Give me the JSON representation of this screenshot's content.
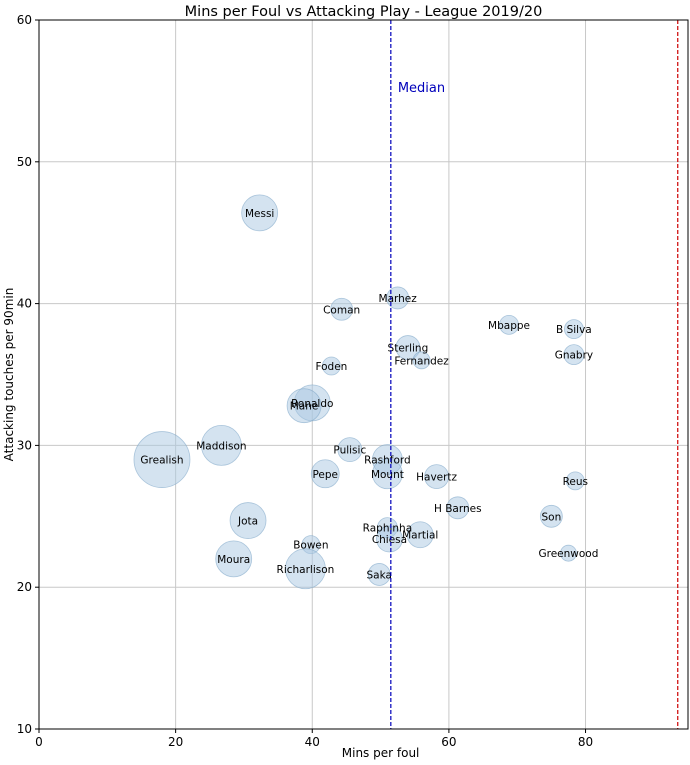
{
  "chart_data": {
    "type": "scatter",
    "title": "Mins per Foul vs Attacking Play - League 2019/20",
    "xlabel": "Mins per foul",
    "ylabel": "Attacking touches per 90min",
    "xlim": [
      0,
      95
    ],
    "ylim": [
      10,
      60
    ],
    "xticks": [
      0,
      20,
      40,
      60,
      80
    ],
    "yticks": [
      10,
      20,
      30,
      40,
      50,
      60
    ],
    "grid": true,
    "bubble_color": "#a9c8e2",
    "bubble_edge": "#7ea6c8",
    "median": {
      "x": 51.5,
      "label": "Median",
      "color": "#0000bb"
    },
    "threshold_line": {
      "x": 93.5,
      "color": "#cc0000"
    },
    "points": [
      {
        "name": "Messi",
        "x": 32.3,
        "y": 46.4,
        "s": 18
      },
      {
        "name": "Marhez",
        "x": 52.5,
        "y": 40.4,
        "s": 11
      },
      {
        "name": "Coman",
        "x": 44.3,
        "y": 39.6,
        "s": 11
      },
      {
        "name": "Mbappe",
        "x": 68.8,
        "y": 38.5,
        "s": 9.5
      },
      {
        "name": "B Silva",
        "x": 78.3,
        "y": 38.2,
        "s": 9.5
      },
      {
        "name": "Sterling",
        "x": 54.0,
        "y": 36.9,
        "s": 12
      },
      {
        "name": "Gnabry",
        "x": 78.3,
        "y": 36.4,
        "s": 10
      },
      {
        "name": "Fernandez",
        "x": 56.0,
        "y": 36.0,
        "s": 8.5
      },
      {
        "name": "Foden",
        "x": 42.8,
        "y": 35.6,
        "s": 9
      },
      {
        "name": "Ronaldo",
        "x": 40.0,
        "y": 33.0,
        "s": 18
      },
      {
        "name": "Mane",
        "x": 38.8,
        "y": 32.8,
        "s": 17
      },
      {
        "name": "Maddison",
        "x": 26.7,
        "y": 30.0,
        "s": 20
      },
      {
        "name": "Pulisic",
        "x": 45.5,
        "y": 29.7,
        "s": 12
      },
      {
        "name": "Grealish",
        "x": 18.0,
        "y": 29.0,
        "s": 28
      },
      {
        "name": "Rashford",
        "x": 51.0,
        "y": 29.0,
        "s": 15
      },
      {
        "name": "Pepe",
        "x": 41.9,
        "y": 28.0,
        "s": 14
      },
      {
        "name": "Mount",
        "x": 51.0,
        "y": 28.0,
        "s": 15
      },
      {
        "name": "Havertz",
        "x": 58.2,
        "y": 27.8,
        "s": 12
      },
      {
        "name": "Reus",
        "x": 78.5,
        "y": 27.5,
        "s": 9
      },
      {
        "name": "H Barnes",
        "x": 61.3,
        "y": 25.6,
        "s": 11
      },
      {
        "name": "Son",
        "x": 75.0,
        "y": 25.0,
        "s": 11
      },
      {
        "name": "Jota",
        "x": 30.6,
        "y": 24.7,
        "s": 18
      },
      {
        "name": "Raphinha",
        "x": 51.0,
        "y": 24.2,
        "s": 10
      },
      {
        "name": "Martial",
        "x": 55.8,
        "y": 23.7,
        "s": 13
      },
      {
        "name": "Chiesa",
        "x": 51.3,
        "y": 23.4,
        "s": 13
      },
      {
        "name": "Bowen",
        "x": 39.8,
        "y": 23.0,
        "s": 9
      },
      {
        "name": "Greenwood",
        "x": 77.5,
        "y": 22.4,
        "s": 8
      },
      {
        "name": "Moura",
        "x": 28.5,
        "y": 22.0,
        "s": 18
      },
      {
        "name": "Richarlison",
        "x": 39.0,
        "y": 21.3,
        "s": 20
      },
      {
        "name": "Saka",
        "x": 49.8,
        "y": 20.9,
        "s": 11
      }
    ]
  }
}
